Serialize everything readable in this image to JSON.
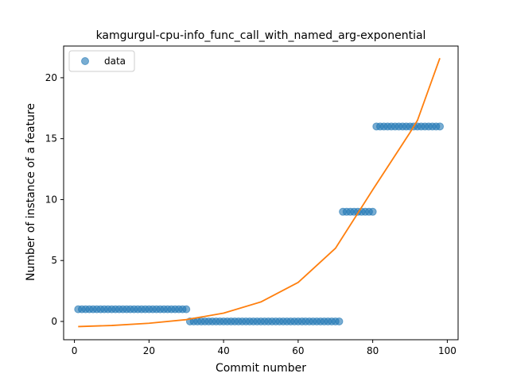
{
  "chart_data": {
    "type": "scatter",
    "title": "kamgurgul-cpu-info_func_call_with_named_arg-exponential",
    "xlabel": "Commit number",
    "ylabel": "Number of instance of a feature",
    "xlim": [
      -2.9,
      102.9
    ],
    "ylim": [
      -1.5,
      22.6
    ],
    "xticks": [
      0,
      20,
      40,
      60,
      80,
      100
    ],
    "yticks": [
      0,
      5,
      10,
      15,
      20
    ],
    "grid": false,
    "legend_position": "upper-left",
    "series": [
      {
        "name": "data",
        "kind": "markers",
        "color": "#1f77b4",
        "points": [
          [
            1,
            1
          ],
          [
            2,
            1
          ],
          [
            3,
            1
          ],
          [
            4,
            1
          ],
          [
            5,
            1
          ],
          [
            6,
            1
          ],
          [
            7,
            1
          ],
          [
            8,
            1
          ],
          [
            9,
            1
          ],
          [
            10,
            1
          ],
          [
            11,
            1
          ],
          [
            12,
            1
          ],
          [
            13,
            1
          ],
          [
            14,
            1
          ],
          [
            15,
            1
          ],
          [
            16,
            1
          ],
          [
            17,
            1
          ],
          [
            18,
            1
          ],
          [
            19,
            1
          ],
          [
            20,
            1
          ],
          [
            21,
            1
          ],
          [
            22,
            1
          ],
          [
            23,
            1
          ],
          [
            24,
            1
          ],
          [
            25,
            1
          ],
          [
            26,
            1
          ],
          [
            27,
            1
          ],
          [
            28,
            1
          ],
          [
            29,
            1
          ],
          [
            30,
            1
          ],
          [
            31,
            0
          ],
          [
            32,
            0
          ],
          [
            33,
            0
          ],
          [
            34,
            0
          ],
          [
            35,
            0
          ],
          [
            36,
            0
          ],
          [
            37,
            0
          ],
          [
            38,
            0
          ],
          [
            39,
            0
          ],
          [
            40,
            0
          ],
          [
            41,
            0
          ],
          [
            42,
            0
          ],
          [
            43,
            0
          ],
          [
            44,
            0
          ],
          [
            45,
            0
          ],
          [
            46,
            0
          ],
          [
            47,
            0
          ],
          [
            48,
            0
          ],
          [
            49,
            0
          ],
          [
            50,
            0
          ],
          [
            51,
            0
          ],
          [
            52,
            0
          ],
          [
            53,
            0
          ],
          [
            54,
            0
          ],
          [
            55,
            0
          ],
          [
            56,
            0
          ],
          [
            57,
            0
          ],
          [
            58,
            0
          ],
          [
            59,
            0
          ],
          [
            60,
            0
          ],
          [
            61,
            0
          ],
          [
            62,
            0
          ],
          [
            63,
            0
          ],
          [
            64,
            0
          ],
          [
            65,
            0
          ],
          [
            66,
            0
          ],
          [
            67,
            0
          ],
          [
            68,
            0
          ],
          [
            69,
            0
          ],
          [
            70,
            0
          ],
          [
            71,
            0
          ],
          [
            72,
            9
          ],
          [
            73,
            9
          ],
          [
            74,
            9
          ],
          [
            75,
            9
          ],
          [
            76,
            9
          ],
          [
            77,
            9
          ],
          [
            78,
            9
          ],
          [
            79,
            9
          ],
          [
            80,
            9
          ],
          [
            81,
            16
          ],
          [
            82,
            16
          ],
          [
            83,
            16
          ],
          [
            84,
            16
          ],
          [
            85,
            16
          ],
          [
            86,
            16
          ],
          [
            87,
            16
          ],
          [
            88,
            16
          ],
          [
            89,
            16
          ],
          [
            90,
            16
          ],
          [
            91,
            16
          ],
          [
            92,
            16
          ],
          [
            93,
            16
          ],
          [
            94,
            16
          ],
          [
            95,
            16
          ],
          [
            96,
            16
          ],
          [
            97,
            16
          ],
          [
            98,
            16
          ]
        ]
      },
      {
        "kind": "line",
        "color": "#ff7f0e",
        "points": [
          [
            1,
            -0.42
          ],
          [
            10,
            -0.33
          ],
          [
            20,
            -0.15
          ],
          [
            30,
            0.15
          ],
          [
            40,
            0.68
          ],
          [
            50,
            1.6
          ],
          [
            60,
            3.2
          ],
          [
            70,
            6.0
          ],
          [
            80,
            10.8
          ],
          [
            90,
            15.5
          ],
          [
            92,
            16.5
          ],
          [
            98,
            21.6
          ]
        ]
      }
    ]
  }
}
